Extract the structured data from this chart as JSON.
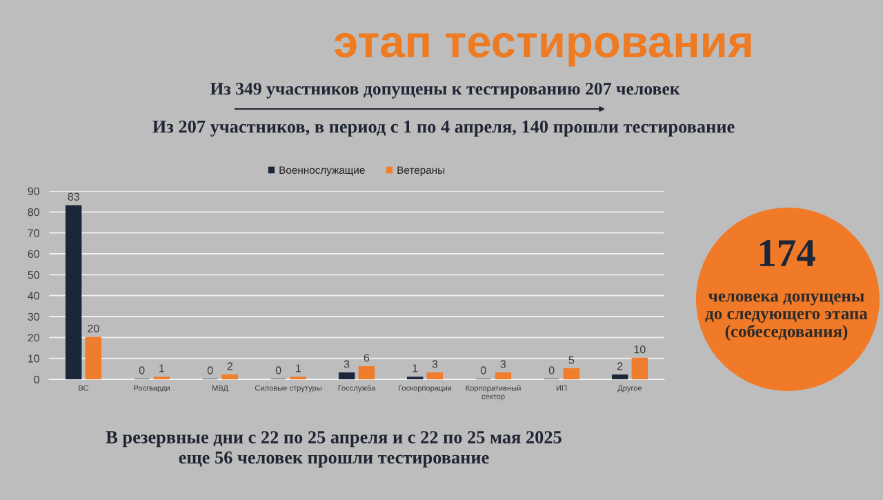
{
  "chart_data": {
    "type": "bar",
    "title": "этап тестирования",
    "subtitle": "Из 349 участников допущены к тестированию 207 человек",
    "annotations": [
      "Из 207 участников, в период с 1 по 4 апреля, 140 прошли тестирование",
      "174",
      "человека допущены\nдо следующего этапа\n(собеседования)",
      "В резервные дни с 22 по 25 апреля и с 22 по 25 мая 2025\nеще 56 человек прошли тестирование"
    ],
    "categories": [
      "ВС",
      "Росгварди",
      "МВД",
      "Силовые струтуры",
      "Госслужба",
      "Госкорпорации",
      "Корпоративный\nсектор",
      "ИП",
      "Другое"
    ],
    "series": [
      {
        "name": "Военнослужащие",
        "color": "#1b2639",
        "values": [
          83,
          0,
          0,
          0,
          3,
          1,
          0,
          0,
          2
        ]
      },
      {
        "name": "Ветераны",
        "color": "#ef7d2b",
        "values": [
          20,
          1,
          2,
          1,
          6,
          3,
          3,
          5,
          10
        ]
      }
    ],
    "ylim": [
      0,
      90
    ],
    "yticks": [
      0,
      10,
      20,
      30,
      40,
      50,
      60,
      70,
      80,
      90
    ],
    "grid": "y",
    "legend": "top",
    "data_labels": true
  }
}
